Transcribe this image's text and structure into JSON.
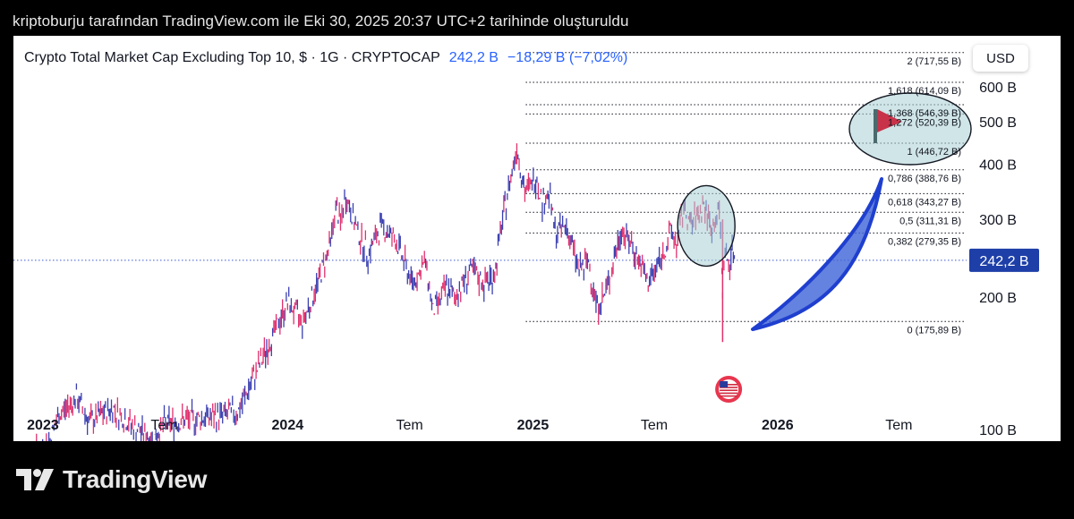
{
  "header": {
    "text": "kriptoburju tarafından TradingView.com ile Eki 30, 2025 20:37 UTC+2 tarihinde oluşturuldu"
  },
  "title": {
    "main": "Crypto Total Market Cap Excluding Top 10, $ · 1G · CRYPTOCAP",
    "price": "242,2 B",
    "change": "−18,29 B (−7,02%)"
  },
  "currency_button": "USD",
  "price_tag": "242,2 B",
  "brand": {
    "name": "TradingView"
  },
  "colors": {
    "accent": "#2962ff",
    "candle_up": "#e0306e",
    "candle_down": "#3a3fb0",
    "price_tag": "#1e3fa8",
    "arrow_fill": "#3d63d8",
    "ellipse_fill": "#a9cfd3",
    "flag": "#c8334a"
  },
  "chart_data": {
    "type": "line",
    "title": "Crypto Total Market Cap Excluding Top 10, $ · 1G · CRYPTOCAP",
    "ylabel": "",
    "xlabel": "",
    "y_scale": "log",
    "ylim": [
      85,
      730
    ],
    "y_ticks": [
      {
        "value": 100,
        "label": "100 B"
      },
      {
        "value": 200,
        "label": "200 B"
      },
      {
        "value": 300,
        "label": "300 B"
      },
      {
        "value": 400,
        "label": "400 B"
      },
      {
        "value": 500,
        "label": "500 B"
      },
      {
        "value": 600,
        "label": "600 B"
      }
    ],
    "x_ticks": [
      {
        "date": "2023-01-01",
        "label": "2023",
        "bold": true
      },
      {
        "date": "2023-07-01",
        "label": "Tem",
        "bold": false
      },
      {
        "date": "2024-01-01",
        "label": "2024",
        "bold": true
      },
      {
        "date": "2024-07-01",
        "label": "Tem",
        "bold": false
      },
      {
        "date": "2025-01-01",
        "label": "2025",
        "bold": true
      },
      {
        "date": "2025-07-01",
        "label": "Tem",
        "bold": false
      },
      {
        "date": "2026-01-01",
        "label": "2026",
        "bold": true
      },
      {
        "date": "2026-07-01",
        "label": "Tem",
        "bold": false
      }
    ],
    "xlim": [
      "2022-11-18",
      "2026-10-10"
    ],
    "series": [
      {
        "values": [
          [
            "2022-11-18",
            90
          ],
          [
            "2022-12-15",
            88
          ],
          [
            "2023-01-08",
            92
          ],
          [
            "2023-01-25",
            108
          ],
          [
            "2023-02-20",
            118
          ],
          [
            "2023-03-12",
            104
          ],
          [
            "2023-04-15",
            112
          ],
          [
            "2023-05-20",
            100
          ],
          [
            "2023-06-15",
            95
          ],
          [
            "2023-07-01",
            103
          ],
          [
            "2023-08-15",
            106
          ],
          [
            "2023-09-15",
            107
          ],
          [
            "2023-10-20",
            110
          ],
          [
            "2023-11-15",
            135
          ],
          [
            "2023-12-15",
            170
          ],
          [
            "2024-01-01",
            195
          ],
          [
            "2024-01-23",
            175
          ],
          [
            "2024-02-15",
            215
          ],
          [
            "2024-03-05",
            265
          ],
          [
            "2024-03-13",
            320
          ],
          [
            "2024-03-20",
            295
          ],
          [
            "2024-03-28",
            340
          ],
          [
            "2024-04-13",
            285
          ],
          [
            "2024-04-30",
            250
          ],
          [
            "2024-05-20",
            290
          ],
          [
            "2024-06-10",
            270
          ],
          [
            "2024-07-05",
            215
          ],
          [
            "2024-07-25",
            240
          ],
          [
            "2024-08-05",
            185
          ],
          [
            "2024-08-25",
            210
          ],
          [
            "2024-09-06",
            200
          ],
          [
            "2024-09-30",
            230
          ],
          [
            "2024-10-20",
            215
          ],
          [
            "2024-11-05",
            225
          ],
          [
            "2024-11-15",
            290
          ],
          [
            "2024-12-08",
            440
          ],
          [
            "2024-12-20",
            345
          ],
          [
            "2025-01-07",
            375
          ],
          [
            "2025-01-15",
            330
          ],
          [
            "2025-01-25",
            345
          ],
          [
            "2025-02-03",
            280
          ],
          [
            "2025-02-20",
            290
          ],
          [
            "2025-03-11",
            230
          ],
          [
            "2025-03-25",
            240
          ],
          [
            "2025-04-07",
            190
          ],
          [
            "2025-04-20",
            205
          ],
          [
            "2025-05-13",
            285
          ],
          [
            "2025-05-30",
            260
          ],
          [
            "2025-06-22",
            215
          ],
          [
            "2025-07-14",
            250
          ],
          [
            "2025-07-25",
            280
          ],
          [
            "2025-08-05",
            265
          ],
          [
            "2025-08-14",
            320
          ],
          [
            "2025-08-25",
            290
          ],
          [
            "2025-09-13",
            325
          ],
          [
            "2025-09-25",
            285
          ],
          [
            "2025-10-06",
            315
          ],
          [
            "2025-10-10",
            240
          ],
          [
            "2025-10-11",
            195
          ],
          [
            "2025-10-13",
            250
          ],
          [
            "2025-10-20",
            240
          ],
          [
            "2025-10-27",
            255
          ],
          [
            "2025-10-30",
            242
          ]
        ]
      }
    ],
    "price_line": 242.2,
    "fibonacci_levels": [
      {
        "value": 175.89,
        "label": "0 (175,89 B)"
      },
      {
        "value": 279.35,
        "label": "0,382 (279,35 B)"
      },
      {
        "value": 311.31,
        "label": "0,5 (311,31 B)"
      },
      {
        "value": 343.27,
        "label": "0,618 (343,27 B)"
      },
      {
        "value": 388.76,
        "label": "0,786 (388,76 B)"
      },
      {
        "value": 446.72,
        "label": "1 (446,72 B)"
      },
      {
        "value": 520.39,
        "label": "1,272 (520,39 B)"
      },
      {
        "value": 546.39,
        "label": "1,368 (546,39 B)"
      },
      {
        "value": 614.09,
        "label": "1,618 (614,09 B)"
      },
      {
        "value": 717.55,
        "label": "2 (717,55 B)"
      }
    ],
    "grid": false
  }
}
